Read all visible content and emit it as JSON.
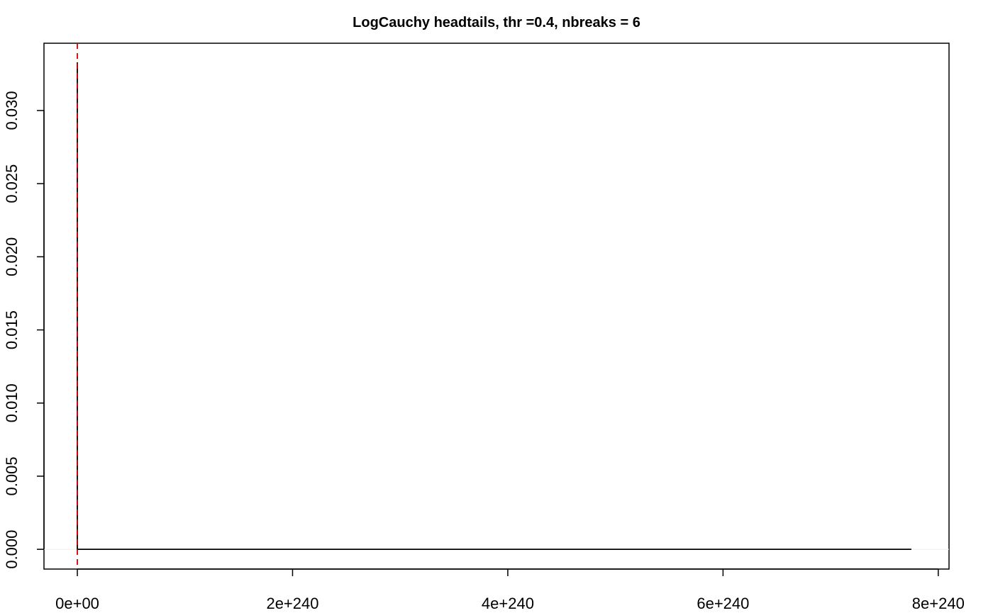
{
  "chart_data": {
    "type": "line",
    "title": "LogCauchy headtails, thr =0.4, nbreaks = 6",
    "xlabel": "",
    "ylabel": "",
    "x_scale_exponent": 240,
    "x_ticks": [
      {
        "value": 0,
        "label": "0e+00"
      },
      {
        "value": 2,
        "label": "2e+240"
      },
      {
        "value": 4,
        "label": "4e+240"
      },
      {
        "value": 6,
        "label": "6e+240"
      },
      {
        "value": 8,
        "label": "8e+240"
      }
    ],
    "y_ticks": [
      {
        "value": 0.0,
        "label": "0.000"
      },
      {
        "value": 0.005,
        "label": "0.005"
      },
      {
        "value": 0.01,
        "label": "0.010"
      },
      {
        "value": 0.015,
        "label": "0.015"
      },
      {
        "value": 0.02,
        "label": "0.020"
      },
      {
        "value": 0.025,
        "label": "0.025"
      },
      {
        "value": 0.03,
        "label": "0.030"
      }
    ],
    "xlim": [
      -0.31,
      8.1
    ],
    "ylim": [
      -0.00135,
      0.0346
    ],
    "series": [
      {
        "color": "#000000",
        "points": [
          [
            0.0,
            0.0333
          ],
          [
            0.0,
            0.0
          ],
          [
            0.015,
            0.0
          ],
          [
            7.75,
            0.0
          ]
        ]
      }
    ],
    "vlines": [
      {
        "x": 0.0,
        "color": "#cc0000",
        "style": "dashed"
      }
    ],
    "hlines": [
      {
        "y": 0.0,
        "color": "#eeeeee"
      }
    ],
    "grid": false,
    "legend": "none"
  }
}
